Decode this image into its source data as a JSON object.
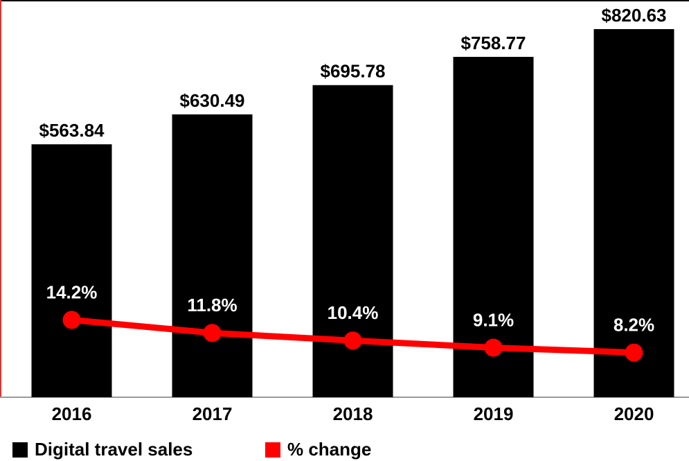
{
  "chart_data": {
    "type": "bar",
    "categories": [
      "2016",
      "2017",
      "2018",
      "2019",
      "2020"
    ],
    "series": [
      {
        "name": "Digital travel sales",
        "type": "bar",
        "color": "#000000",
        "values": [
          563.84,
          630.49,
          695.78,
          758.77,
          820.63
        ],
        "value_labels": [
          "$563.84",
          "$630.49",
          "$695.78",
          "$758.77",
          "$820.63"
        ]
      },
      {
        "name": "% change",
        "type": "line",
        "axis": "y2",
        "color": "#ff0000",
        "values": [
          14.2,
          11.8,
          10.4,
          9.1,
          8.2
        ],
        "value_labels": [
          "14.2%",
          "11.8%",
          "10.4%",
          "9.1%",
          "8.2%"
        ]
      }
    ],
    "ylim": [
      0,
      850
    ],
    "y2lim": [
      0,
      70
    ],
    "legend": "bottom-left"
  }
}
